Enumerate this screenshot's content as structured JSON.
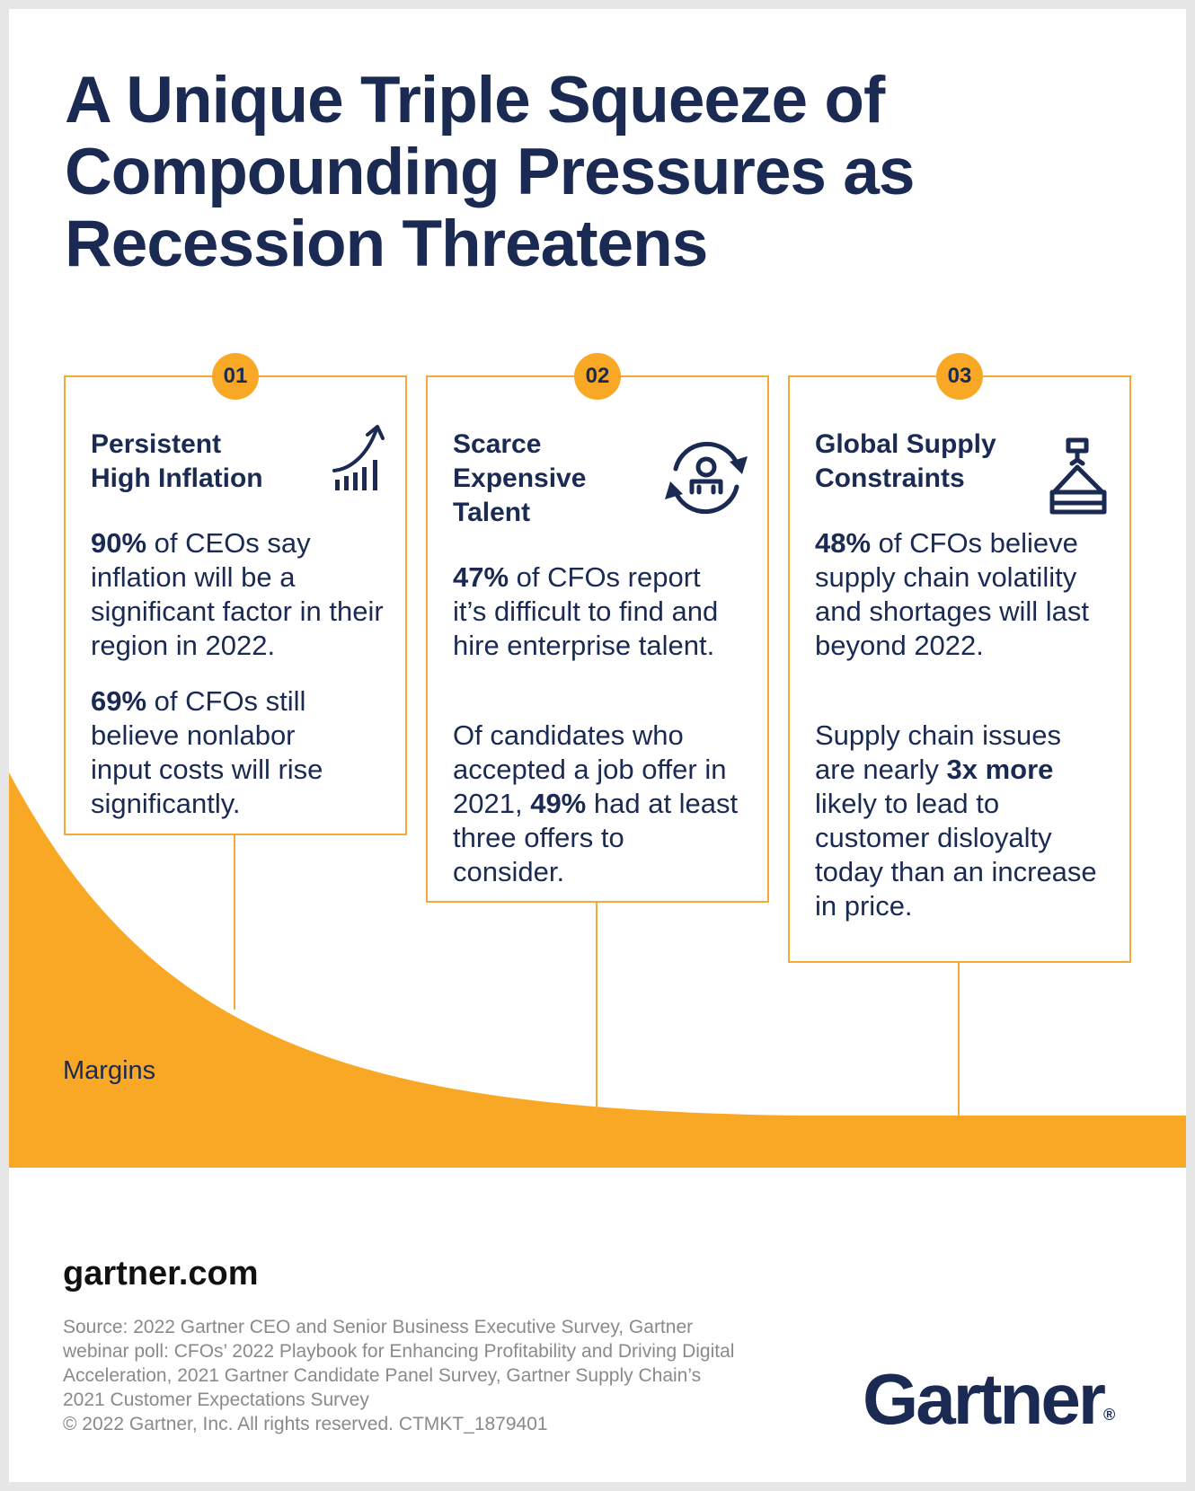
{
  "title": "A Unique Triple Squeeze of Compounding Pressures as Recession Threatens",
  "margins_label": "Margins",
  "pressures": [
    {
      "number": "01",
      "icon": "rising-bar-chart-icon",
      "title_line1": "Persistent",
      "title_line2": "High Inflation",
      "p1": {
        "stat": "90%",
        "text": " of CEOs say inflation will be a significant factor in their region in 2022."
      },
      "p2": {
        "stat": "69%",
        "text": " of CFOs still believe nonlabor input costs will rise significantly."
      }
    },
    {
      "number": "02",
      "icon": "person-cycle-arrows-icon",
      "title_line1": "Scarce",
      "title_line2": "Expensive",
      "title_line3": "Talent",
      "p1": {
        "stat": "47%",
        "text": " of CFOs report it’s difficult to find and hire enterprise talent."
      },
      "p2": {
        "pre": "Of candidates who accepted a job offer in 2021, ",
        "stat": "49%",
        "post": " had at least three offers to consider."
      }
    },
    {
      "number": "03",
      "icon": "crane-hook-load-icon",
      "title_line1": "Global Supply",
      "title_line2": "Constraints",
      "p1": {
        "stat": "48%",
        "text": " of CFOs believe supply chain volatility and shortages will last beyond 2022."
      },
      "p2": {
        "pre": "Supply chain issues are nearly ",
        "stat": "3x more",
        "post": " likely to lead to customer disloyalty today than an increase in price."
      }
    }
  ],
  "footer": {
    "site": "gartner.com",
    "source": "Source: 2022 Gartner CEO and Senior Business Executive Survey, Gartner webinar poll: CFOs’ 2022 Playbook for Enhancing Profitability and Driving Digital Acceleration, 2021 Gartner Candidate Panel Survey, Gartner Supply Chain’s 2021 Customer Expectations Survey",
    "copyright": "© 2022 Gartner, Inc. All rights reserved. CTMKT_1879401",
    "logo": "Gartner",
    "logo_mark": "®"
  },
  "colors": {
    "navy": "#1a2a52",
    "orange": "#f9a825",
    "border": "#f4a93a",
    "background": "#e6e6e6"
  }
}
